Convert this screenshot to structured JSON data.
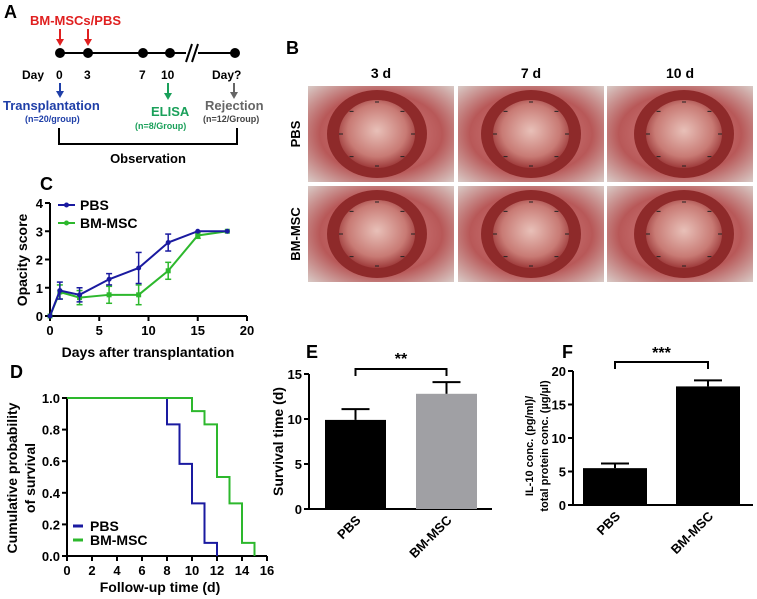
{
  "panel_labels": {
    "a": "A",
    "b": "B",
    "c": "C",
    "d": "D",
    "e": "E",
    "f": "F"
  },
  "panel_a": {
    "treatment": "BM-MSCs/PBS",
    "day_prefix": "Day",
    "days": [
      "0",
      "3",
      "7",
      "10",
      "Day?"
    ],
    "transplantation": "Transplantation",
    "transplantation_n": "(n=20/group)",
    "elisa": "ELISA",
    "elisa_n": "(n=8/Group)",
    "rejection": "Rejection",
    "rejection_n": "(n=12/Group)",
    "observation": "Observation",
    "colors": {
      "treatment": "#e02020",
      "transplantation": "#1f3fa8",
      "elisa": "#1aa05a",
      "rejection": "#666666"
    }
  },
  "panel_b": {
    "columns": [
      "3 d",
      "7 d",
      "10 d"
    ],
    "rows": [
      "PBS",
      "BM-MSC"
    ]
  },
  "chart_data": [
    {
      "id": "C",
      "type": "line",
      "xlabel": "Days after transplantation",
      "ylabel": "Opacity score",
      "xlim": [
        0,
        20
      ],
      "ylim": [
        0,
        4
      ],
      "xticks": [
        "0",
        "5",
        "10",
        "15",
        "20"
      ],
      "yticks": [
        "0",
        "1",
        "2",
        "3",
        "4"
      ],
      "legend": "top-left",
      "series": [
        {
          "name": "PBS",
          "color": "#1a1aa0",
          "x": [
            0,
            1,
            3,
            6,
            9,
            12,
            15,
            18
          ],
          "y": [
            0,
            0.9,
            0.75,
            1.3,
            1.7,
            2.6,
            3,
            3
          ],
          "err": [
            0,
            0.3,
            0.25,
            0.2,
            0.55,
            0.3,
            0,
            0
          ]
        },
        {
          "name": "BM-MSC",
          "color": "#2db82d",
          "x": [
            0,
            1,
            3,
            6,
            9,
            12,
            15,
            18
          ],
          "y": [
            0,
            0.85,
            0.65,
            0.75,
            0.75,
            1.6,
            2.85,
            3
          ],
          "err": [
            0,
            0.25,
            0.25,
            0.3,
            0.35,
            0.3,
            0.1,
            0
          ]
        }
      ]
    },
    {
      "id": "D",
      "type": "line",
      "step": true,
      "xlabel": "Follow-up time (d)",
      "ylabel": [
        "Cumulative probability",
        "of survival"
      ],
      "xlim": [
        0,
        16
      ],
      "ylim": [
        0,
        1
      ],
      "xticks": [
        "0",
        "2",
        "4",
        "6",
        "8",
        "10",
        "12",
        "14",
        "16"
      ],
      "yticks": [
        "0.0",
        "0.2",
        "0.4",
        "0.6",
        "0.8",
        "1.0"
      ],
      "legend": "bottom-left",
      "series": [
        {
          "name": "PBS",
          "color": "#1a1aa0",
          "x": [
            0,
            8,
            9,
            10,
            11,
            12
          ],
          "y": [
            1,
            0.833,
            0.583,
            0.333,
            0.083,
            0
          ]
        },
        {
          "name": "BM-MSC",
          "color": "#2db82d",
          "x": [
            0,
            10,
            11,
            12,
            13,
            14,
            15
          ],
          "y": [
            1,
            0.917,
            0.833,
            0.5,
            0.333,
            0.083,
            0
          ]
        }
      ]
    },
    {
      "id": "E",
      "type": "bar",
      "ylabel": "Survival time (d)",
      "ylim": [
        0,
        15
      ],
      "yticks": [
        "0",
        "5",
        "10",
        "15"
      ],
      "categories": [
        "PBS",
        "BM-MSC"
      ],
      "values": [
        9.9,
        12.8
      ],
      "err": [
        1.2,
        1.3
      ],
      "colors": [
        "#000000",
        "#a0a0a4"
      ],
      "significance": "**"
    },
    {
      "id": "F",
      "type": "bar",
      "ylabel": [
        "IL-10 conc. (pg/ml)/",
        "total protein conc. (µg/µl)"
      ],
      "ylim": [
        0,
        20
      ],
      "yticks": [
        "0",
        "5",
        "10",
        "15",
        "20"
      ],
      "categories": [
        "PBS",
        "BM-MSC"
      ],
      "values": [
        5.5,
        17.7
      ],
      "err": [
        0.7,
        0.9
      ],
      "colors": [
        "#000000",
        "#000000"
      ],
      "significance": "***"
    }
  ]
}
